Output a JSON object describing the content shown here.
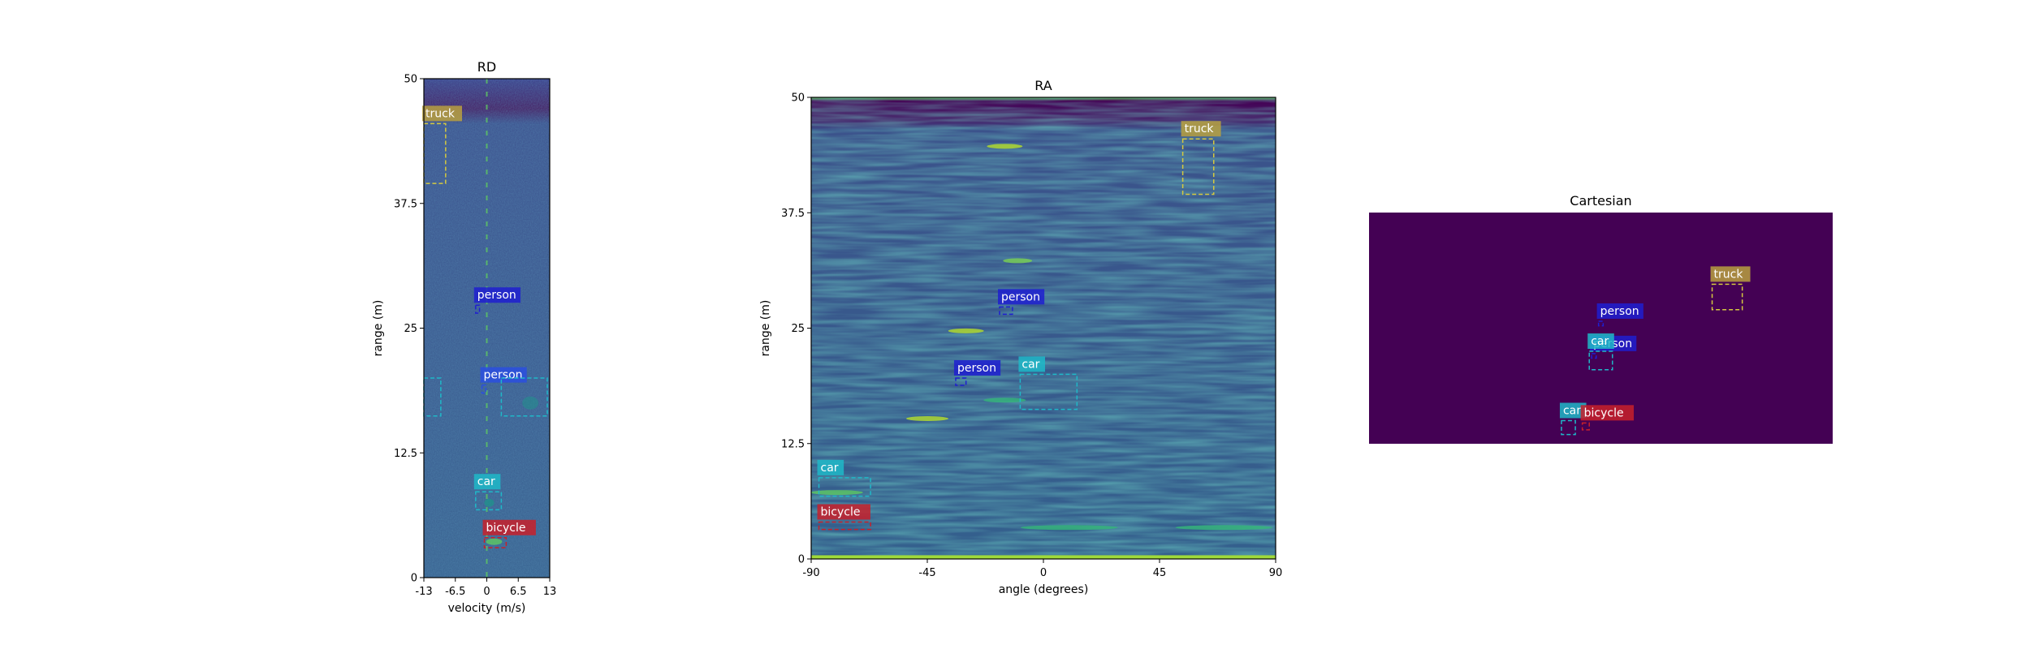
{
  "colors": {
    "background_dark": "#440154",
    "heat_mid": "#31688e",
    "heat_low": "#3b528b",
    "heat_teal": "#21918c",
    "heat_green": "#5ec962",
    "heat_yellow": "#fde725",
    "truck": "#b8a040",
    "person": "#1f1fd0",
    "person_alt": "#2a4fe0",
    "car": "#1fb8c8",
    "bicycle": "#c8202a"
  },
  "chart_data": [
    {
      "type": "heatmap",
      "title": "RD",
      "xlabel": "velocity (m/s)",
      "ylabel": "range (m)",
      "xlim": [
        -13,
        13
      ],
      "ylim": [
        0,
        50
      ],
      "xticks": [
        "-13",
        "-6.5",
        "0",
        "6.5",
        "13"
      ],
      "yticks": [
        "0",
        "12.5",
        "25",
        "37.5",
        "50"
      ],
      "boxes": [
        {
          "label": "truck",
          "color": "truck",
          "x0": -13,
          "x1": -8.5,
          "y0": 39.5,
          "y1": 45.5
        },
        {
          "label": "person",
          "color": "person",
          "x0": -2.3,
          "x1": -1.5,
          "y0": 26.5,
          "y1": 27.3
        },
        {
          "label": "person",
          "color": "person_alt",
          "x0": -1.0,
          "x1": -0.2,
          "y0": 18.5,
          "y1": 19.3
        },
        {
          "label": "",
          "color": "car",
          "x0": -13,
          "x1": -9.5,
          "y0": 16.2,
          "y1": 20.0
        },
        {
          "label": "",
          "color": "car",
          "x0": 3.0,
          "x1": 12.5,
          "y0": 16.2,
          "y1": 20.0
        },
        {
          "label": "car",
          "color": "car",
          "x0": -2.3,
          "x1": 3.0,
          "y0": 6.8,
          "y1": 8.6
        },
        {
          "label": "bicycle",
          "color": "bicycle",
          "x0": -0.5,
          "x1": 4.0,
          "y0": 3.0,
          "y1": 4.0
        }
      ]
    },
    {
      "type": "heatmap",
      "title": "RA",
      "xlabel": "angle (degrees)",
      "ylabel": "range (m)",
      "xlim": [
        -90,
        90
      ],
      "ylim": [
        0,
        50
      ],
      "xticks": [
        "-90",
        "-45",
        "0",
        "45",
        "90"
      ],
      "yticks": [
        "0",
        "12.5",
        "25",
        "37.5",
        "50"
      ],
      "boxes": [
        {
          "label": "truck",
          "color": "truck",
          "x0": 54,
          "x1": 66,
          "y0": 39.5,
          "y1": 45.5
        },
        {
          "label": "person",
          "color": "person",
          "x0": -17,
          "x1": -12,
          "y0": 26.5,
          "y1": 27.3
        },
        {
          "label": "person",
          "color": "person",
          "x0": -34,
          "x1": -30,
          "y0": 18.8,
          "y1": 19.6
        },
        {
          "label": "car",
          "color": "car",
          "x0": -9,
          "x1": 13,
          "y0": 16.2,
          "y1": 20.0
        },
        {
          "label": "car",
          "color": "car",
          "x0": -87,
          "x1": -67,
          "y0": 6.8,
          "y1": 8.8
        },
        {
          "label": "bicycle",
          "color": "bicycle",
          "x0": -87,
          "x1": -67,
          "y0": 3.2,
          "y1": 4.0
        }
      ]
    },
    {
      "type": "heatmap",
      "title": "Cartesian",
      "xlabel": "",
      "ylabel": "",
      "xlim": [
        0,
        100
      ],
      "ylim": [
        0,
        50
      ],
      "xticks": [],
      "yticks": [],
      "boxes": [
        {
          "label": "truck",
          "color": "truck",
          "x0": 74.0,
          "x1": 80.5,
          "y0": 29.0,
          "y1": 34.5
        },
        {
          "label": "person",
          "color": "person",
          "x0": 49.5,
          "x1": 50.5,
          "y0": 25.5,
          "y1": 26.5
        },
        {
          "label": "person",
          "color": "person",
          "x0": 48.0,
          "x1": 49.0,
          "y0": 18.5,
          "y1": 19.5
        },
        {
          "label": "car",
          "color": "car",
          "x0": 47.5,
          "x1": 52.5,
          "y0": 16.0,
          "y1": 20.0
        },
        {
          "label": "car",
          "color": "car",
          "x0": 41.5,
          "x1": 44.5,
          "y0": 2.0,
          "y1": 5.0
        },
        {
          "label": "bicycle",
          "color": "bicycle",
          "x0": 46.0,
          "x1": 47.5,
          "y0": 3.0,
          "y1": 4.5
        }
      ]
    }
  ]
}
